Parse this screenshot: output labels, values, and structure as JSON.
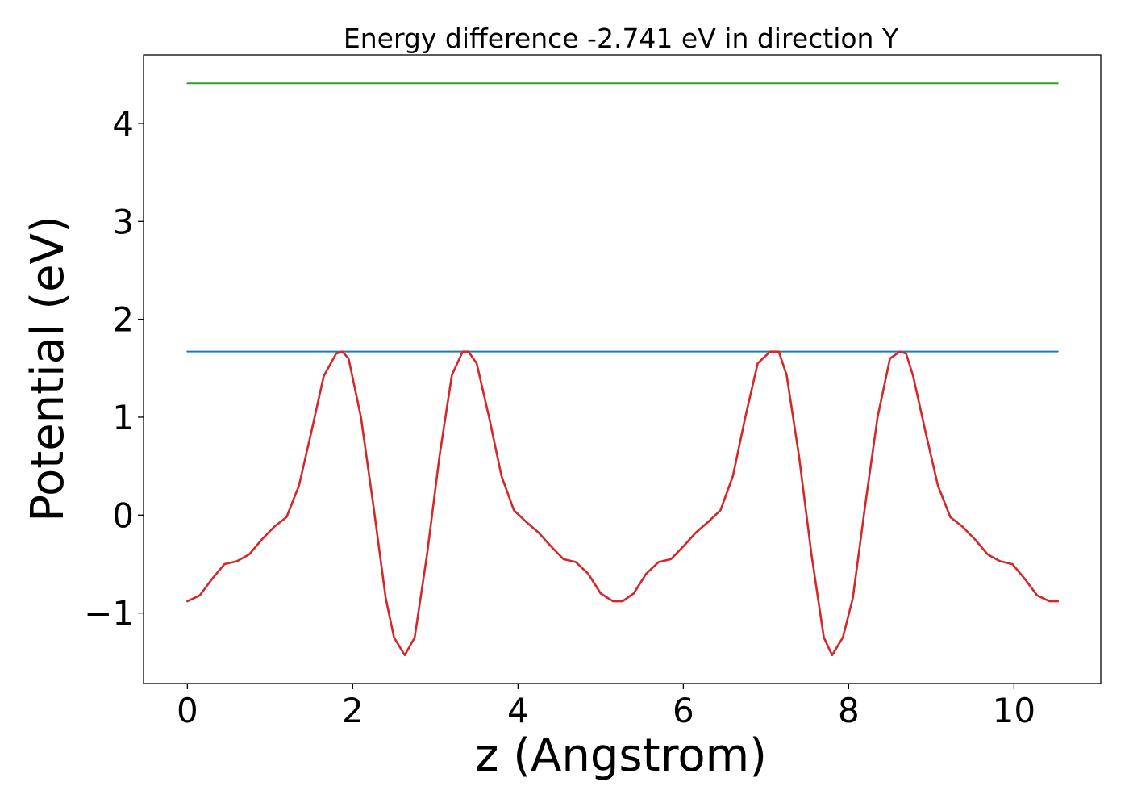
{
  "chart_data": {
    "type": "line",
    "title": "Energy difference -2.741 eV in direction Y",
    "xlabel": "z (Angstrom)",
    "ylabel": "Potential (eV)",
    "xlim": [
      -0.53,
      11.05
    ],
    "ylim": [
      -1.72,
      4.7
    ],
    "xticks": [
      0,
      2,
      4,
      6,
      8,
      10
    ],
    "xtick_labels": [
      "0",
      "2",
      "4",
      "6",
      "8",
      "10"
    ],
    "yticks": [
      -1,
      0,
      1,
      2,
      3,
      4
    ],
    "ytick_labels": [
      "−1",
      "0",
      "1",
      "2",
      "3",
      "4"
    ],
    "grid": false,
    "series": [
      {
        "color": "#2ca02c",
        "x": [
          0,
          10.53
        ],
        "y": [
          4.41,
          4.41
        ]
      },
      {
        "color": "#1f77b4",
        "x": [
          0,
          10.53
        ],
        "y": [
          1.67,
          1.67
        ]
      },
      {
        "color": "#d62728",
        "x": [
          0,
          0.15,
          0.3,
          0.45,
          0.6,
          0.75,
          0.9,
          1.05,
          1.2,
          1.35,
          1.5,
          1.65,
          1.8,
          1.875,
          1.95,
          2.1,
          2.25,
          2.4,
          2.5,
          2.63,
          2.75,
          2.9,
          3.05,
          3.2,
          3.33,
          3.4,
          3.5,
          3.65,
          3.8,
          3.95,
          4.1,
          4.25,
          4.4,
          4.55,
          4.7,
          4.85,
          5.0,
          5.15,
          5.265,
          5.4,
          5.55,
          5.7,
          5.85,
          6.0,
          6.15,
          6.3,
          6.45,
          6.6,
          6.75,
          6.9,
          7.05,
          7.155,
          7.25,
          7.4,
          7.55,
          7.7,
          7.8,
          7.93,
          8.05,
          8.2,
          8.35,
          8.5,
          8.62,
          8.695,
          8.78,
          8.93,
          9.08,
          9.23,
          9.38,
          9.53,
          9.68,
          9.83,
          9.98,
          10.13,
          10.28,
          10.43,
          10.53
        ],
        "y": [
          -0.88,
          -0.82,
          -0.65,
          -0.5,
          -0.47,
          -0.4,
          -0.25,
          -0.12,
          -0.02,
          0.3,
          0.85,
          1.42,
          1.65,
          1.67,
          1.6,
          1.0,
          0.1,
          -0.85,
          -1.25,
          -1.43,
          -1.25,
          -0.4,
          0.6,
          1.43,
          1.67,
          1.67,
          1.55,
          1.0,
          0.4,
          0.05,
          -0.07,
          -0.18,
          -0.32,
          -0.45,
          -0.48,
          -0.6,
          -0.8,
          -0.88,
          -0.88,
          -0.8,
          -0.6,
          -0.48,
          -0.45,
          -0.32,
          -0.18,
          -0.07,
          0.05,
          0.4,
          1.0,
          1.55,
          1.67,
          1.67,
          1.43,
          0.6,
          -0.4,
          -1.25,
          -1.43,
          -1.25,
          -0.85,
          0.1,
          1.0,
          1.6,
          1.67,
          1.65,
          1.42,
          0.85,
          0.3,
          -0.02,
          -0.12,
          -0.25,
          -0.4,
          -0.47,
          -0.5,
          -0.65,
          -0.82,
          -0.88,
          -0.88
        ]
      }
    ]
  }
}
